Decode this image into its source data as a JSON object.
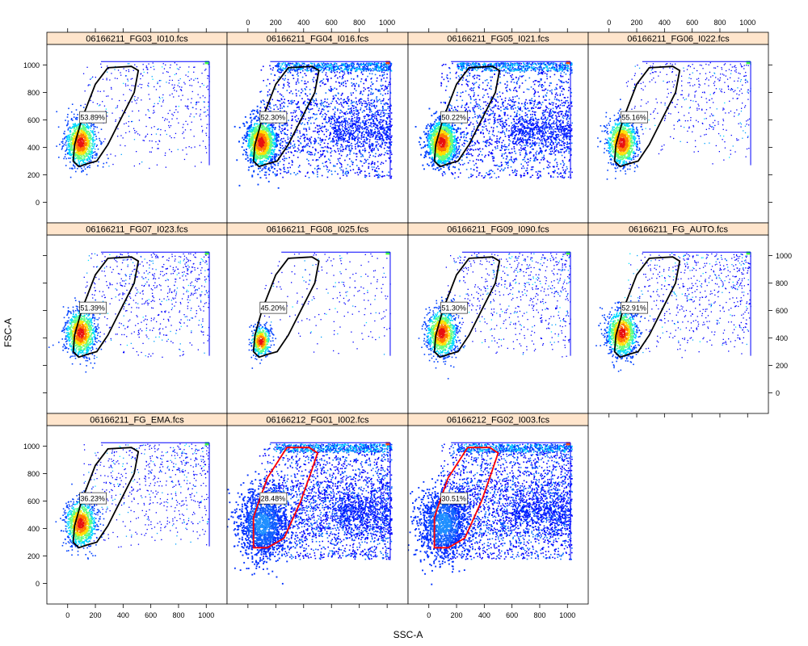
{
  "chart_data": {
    "type": "scatter",
    "subtype": "flow-cytometry density scatter, trellis layout",
    "xlabel": "SSC-A",
    "ylabel": "FSC-A",
    "xlim": [
      -150,
      1150
    ],
    "ylim": [
      -150,
      1150
    ],
    "xticks": [
      0,
      200,
      400,
      600,
      800,
      1000
    ],
    "yticks": [
      0,
      200,
      400,
      600,
      800,
      1000
    ],
    "colors": {
      "strip_bg": "#ffe5cc",
      "panel_border": "#000000",
      "gate_default": "#000000",
      "gate_highlight": "#ff0000",
      "density_low": "#0000ff",
      "density_mid": "#00ffff",
      "density_high": "#ff0000"
    },
    "panels": [
      {
        "name": "06166211_FG03_I010.fcs",
        "gate_percent": "53.89%",
        "gate_color": "black",
        "spread": "sparse",
        "core": "red"
      },
      {
        "name": "06166211_FG04_I016.fcs",
        "gate_percent": "52.30%",
        "gate_color": "black",
        "spread": "dense",
        "core": "red"
      },
      {
        "name": "06166211_FG05_I021.fcs",
        "gate_percent": "50.22%",
        "gate_color": "black",
        "spread": "dense",
        "core": "red"
      },
      {
        "name": "06166211_FG06_I022.fcs",
        "gate_percent": "55.16%",
        "gate_color": "black",
        "spread": "sparse",
        "core": "red"
      },
      {
        "name": "06166211_FG07_I023.fcs",
        "gate_percent": "51.39%",
        "gate_color": "black",
        "spread": "medium",
        "core": "red"
      },
      {
        "name": "06166211_FG08_I025.fcs",
        "gate_percent": "45.20%",
        "gate_color": "black",
        "spread": "very-sparse",
        "core": "red-small"
      },
      {
        "name": "06166211_FG09_I090.fcs",
        "gate_percent": "51.30%",
        "gate_color": "black",
        "spread": "medium",
        "core": "red"
      },
      {
        "name": "06166211_FG_AUTO.fcs",
        "gate_percent": "52.91%",
        "gate_color": "black",
        "spread": "medium",
        "core": "red"
      },
      {
        "name": "06166211_FG_EMA.fcs",
        "gate_percent": "36.23%",
        "gate_color": "black",
        "spread": "medium",
        "core": "red"
      },
      {
        "name": "06166212_FG01_I002.fcs",
        "gate_percent": "28.48%",
        "gate_color": "red",
        "spread": "very-dense",
        "core": "blue"
      },
      {
        "name": "06166212_FG02_I003.fcs",
        "gate_percent": "30.51%",
        "gate_color": "red",
        "spread": "very-dense",
        "core": "blue"
      }
    ],
    "gate_polygon": [
      [
        80,
        260
      ],
      [
        140,
        280
      ],
      [
        210,
        300
      ],
      [
        290,
        420
      ],
      [
        380,
        600
      ],
      [
        480,
        800
      ],
      [
        510,
        960
      ],
      [
        460,
        990
      ],
      [
        290,
        980
      ],
      [
        200,
        860
      ],
      [
        100,
        600
      ],
      [
        50,
        420
      ],
      [
        40,
        300
      ]
    ],
    "gate_polygon_wide": [
      [
        40,
        260
      ],
      [
        140,
        260
      ],
      [
        260,
        330
      ],
      [
        380,
        600
      ],
      [
        450,
        800
      ],
      [
        500,
        950
      ],
      [
        440,
        990
      ],
      [
        280,
        990
      ],
      [
        140,
        770
      ],
      [
        80,
        600
      ],
      [
        40,
        480
      ]
    ]
  }
}
